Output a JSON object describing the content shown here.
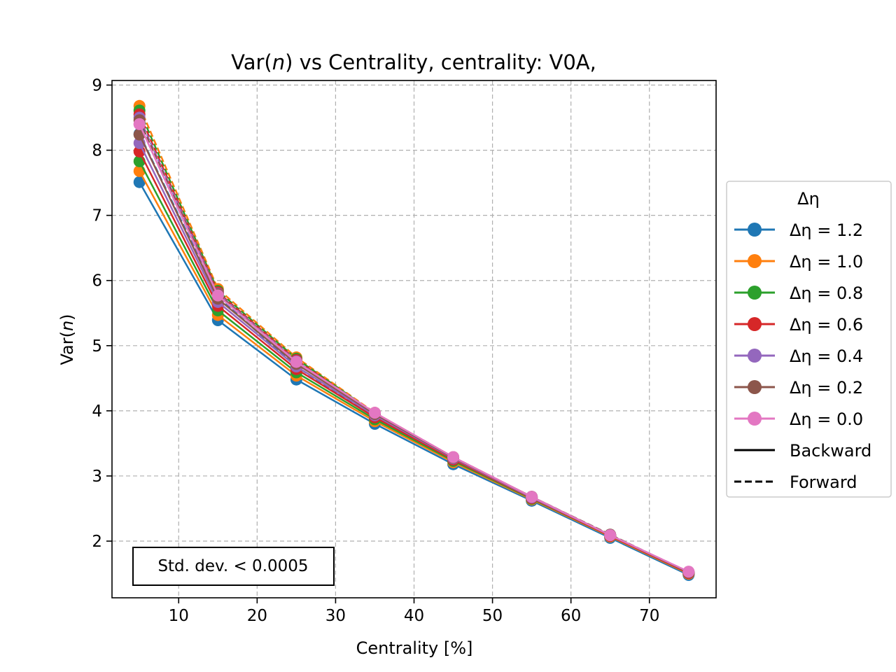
{
  "chart_data": {
    "type": "line",
    "title": "Var(n) vs Centrality, centrality: V0A,",
    "title_parts": {
      "pre": "Var(",
      "var": "n",
      "post": ") vs Centrality, centrality: V0A,"
    },
    "xlabel": "Centrality [%]",
    "ylabel_parts": {
      "pre": "Var(",
      "var": "n",
      "post": ")"
    },
    "xlim": [
      1.5,
      78.5
    ],
    "ylim": [
      1.13,
      9.07
    ],
    "xticks": [
      10,
      20,
      30,
      40,
      50,
      60,
      70
    ],
    "yticks": [
      2,
      3,
      4,
      5,
      6,
      7,
      8,
      9
    ],
    "grid": true,
    "x": [
      5,
      15,
      25,
      35,
      45,
      55,
      65,
      75
    ],
    "legend": {
      "title": "Δη",
      "placement": "outside-right",
      "styles": [
        {
          "label": "Backward",
          "dash": "solid"
        },
        {
          "label": "Forward",
          "dash": "dashed"
        }
      ]
    },
    "annotation": "Std. dev. < 0.0005",
    "series": [
      {
        "name": "Δη = 1.2",
        "color": "#1f77b4",
        "backward": [
          7.51,
          5.39,
          4.48,
          3.8,
          3.18,
          2.62,
          2.05,
          1.48
        ],
        "forward": [
          8.25,
          5.75,
          4.68,
          3.9,
          3.24,
          2.64,
          2.06,
          1.49
        ]
      },
      {
        "name": "Δη = 1.0",
        "color": "#ff7f0e",
        "backward": [
          7.68,
          5.47,
          4.54,
          3.84,
          3.21,
          2.64,
          2.07,
          1.5
        ],
        "forward": [
          8.68,
          5.87,
          4.82,
          3.97,
          3.29,
          2.68,
          2.09,
          1.51
        ]
      },
      {
        "name": "Δη = 0.8",
        "color": "#2ca02c",
        "backward": [
          7.83,
          5.54,
          4.59,
          3.87,
          3.23,
          2.65,
          2.08,
          1.51
        ],
        "forward": [
          8.61,
          5.84,
          4.8,
          3.96,
          3.28,
          2.68,
          2.09,
          1.51
        ]
      },
      {
        "name": "Δη = 0.6",
        "color": "#d62728",
        "backward": [
          7.98,
          5.61,
          4.64,
          3.9,
          3.25,
          2.66,
          2.08,
          1.51
        ],
        "forward": [
          8.55,
          5.82,
          4.78,
          3.95,
          3.28,
          2.67,
          2.09,
          1.51
        ]
      },
      {
        "name": "Δη = 0.4",
        "color": "#9467bd",
        "backward": [
          8.11,
          5.67,
          4.68,
          3.93,
          3.27,
          2.67,
          2.09,
          1.52
        ],
        "forward": [
          8.5,
          5.8,
          4.76,
          3.95,
          3.28,
          2.67,
          2.09,
          1.52
        ]
      },
      {
        "name": "Δη = 0.2",
        "color": "#8c564b",
        "backward": [
          8.24,
          5.72,
          4.72,
          3.95,
          3.28,
          2.68,
          2.09,
          1.52
        ],
        "forward": [
          8.46,
          5.79,
          4.75,
          3.94,
          3.28,
          2.68,
          2.1,
          1.52
        ]
      },
      {
        "name": "Δη = 0.0",
        "color": "#e377c2",
        "backward": [
          8.4,
          5.77,
          4.75,
          3.97,
          3.29,
          2.68,
          2.09,
          1.53
        ],
        "forward": [
          8.4,
          5.77,
          4.75,
          3.97,
          3.29,
          2.68,
          2.09,
          1.53
        ]
      }
    ]
  }
}
